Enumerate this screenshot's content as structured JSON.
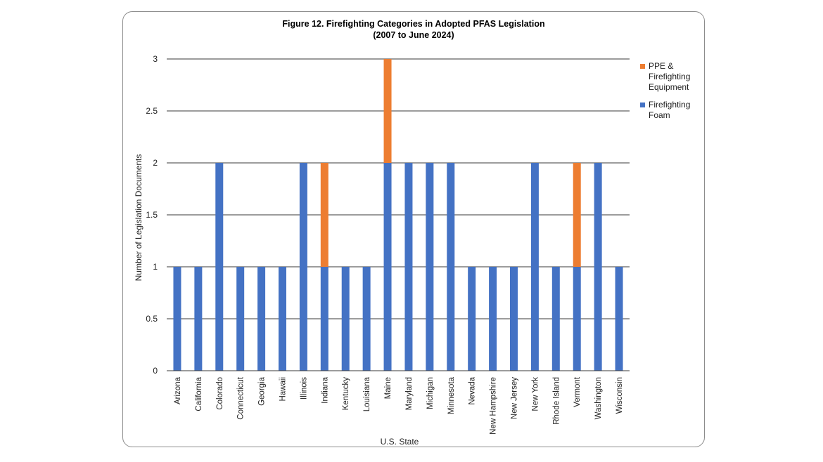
{
  "chart_data": {
    "type": "bar",
    "stacked": true,
    "title": "Figure 12. Firefighting Categories in Adopted PFAS Legislation",
    "subtitle": "(2007 to June 2024)",
    "xlabel": "U.S. State",
    "ylabel": "Number of Legislation Documents",
    "ylim": [
      0,
      3
    ],
    "yticks": [
      "0",
      "0.5",
      "1",
      "1.5",
      "2",
      "2.5",
      "3"
    ],
    "grid": true,
    "legend_position": "right",
    "categories": [
      "Arizona",
      "California",
      "Colorado",
      "Connecticut",
      "Georgia",
      "Hawaii",
      "Illinois",
      "Indiana",
      "Kentucky",
      "Louisiana",
      "Maine",
      "Maryland",
      "Michigan",
      "Minnesota",
      "Nevada",
      "New Hampshire",
      "New Jersey",
      "New York",
      "Rhode Island",
      "Vermont",
      "Washington",
      "Wisconsin"
    ],
    "series": [
      {
        "name": "Firefighting Foam",
        "color": "#4472C4",
        "values": [
          1,
          1,
          2,
          1,
          1,
          1,
          2,
          1,
          1,
          1,
          2,
          2,
          2,
          2,
          1,
          1,
          1,
          2,
          1,
          1,
          2,
          1
        ]
      },
      {
        "name": "PPE & Firefighting Equipment",
        "color": "#ED7D31",
        "values": [
          0,
          0,
          0,
          0,
          0,
          0,
          0,
          1,
          0,
          0,
          1,
          0,
          0,
          0,
          0,
          0,
          0,
          0,
          0,
          1,
          0,
          0
        ]
      }
    ],
    "legend_order": [
      1,
      0
    ]
  }
}
